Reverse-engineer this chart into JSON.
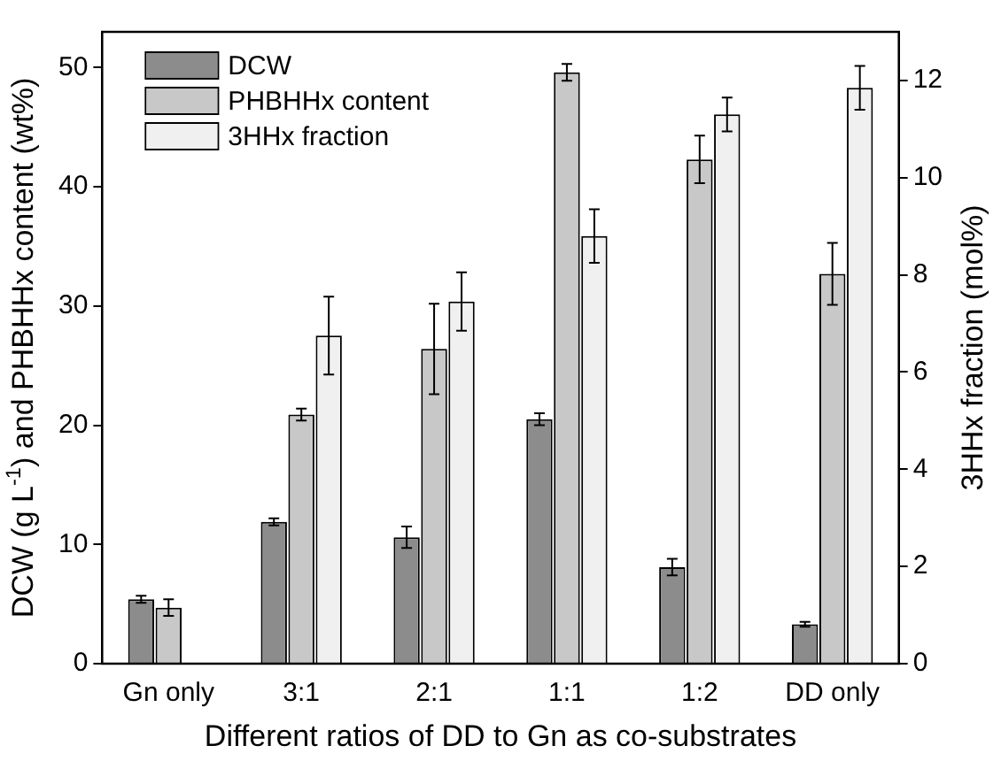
{
  "chart_data": {
    "type": "bar",
    "xlabel": "Different ratios of DD to Gn as co-substrates",
    "ylabel": "DCW (g L$^{-1}$) and PHBHHx content (wt%)",
    "y2label": "3HHx fraction (mol%)",
    "categories": [
      "Gn only",
      "3:1",
      "2:1",
      "1:1",
      "1:2",
      "DD only"
    ],
    "series": [
      {
        "name": "DCW",
        "color": "#8c8c8c",
        "values": [
          5.4,
          11.9,
          10.6,
          20.5,
          8.1,
          3.3
        ],
        "errors": [
          0.3,
          0.3,
          0.9,
          0.5,
          0.7,
          0.2
        ]
      },
      {
        "name": "PHBHHx content",
        "color": "#c8c8c8",
        "values": [
          4.7,
          20.9,
          26.4,
          49.6,
          42.3,
          32.7
        ],
        "errors": [
          0.7,
          0.5,
          3.8,
          0.7,
          2.0,
          2.6
        ]
      },
      {
        "name": "3HHx fraction",
        "color": "#f0f0f0",
        "axis": "y2",
        "values": [
          null,
          6.75,
          7.45,
          8.8,
          11.3,
          11.85
        ],
        "errors": [
          null,
          0.8,
          0.6,
          0.55,
          0.35,
          0.45
        ]
      }
    ],
    "ylim": [
      0,
      53
    ],
    "yticks": [
      0,
      10,
      20,
      30,
      40,
      50
    ],
    "y2lim": [
      0,
      13
    ],
    "y2ticks": [
      0,
      2,
      4,
      6,
      8,
      10,
      12
    ],
    "grid": false,
    "legend": "top left"
  }
}
